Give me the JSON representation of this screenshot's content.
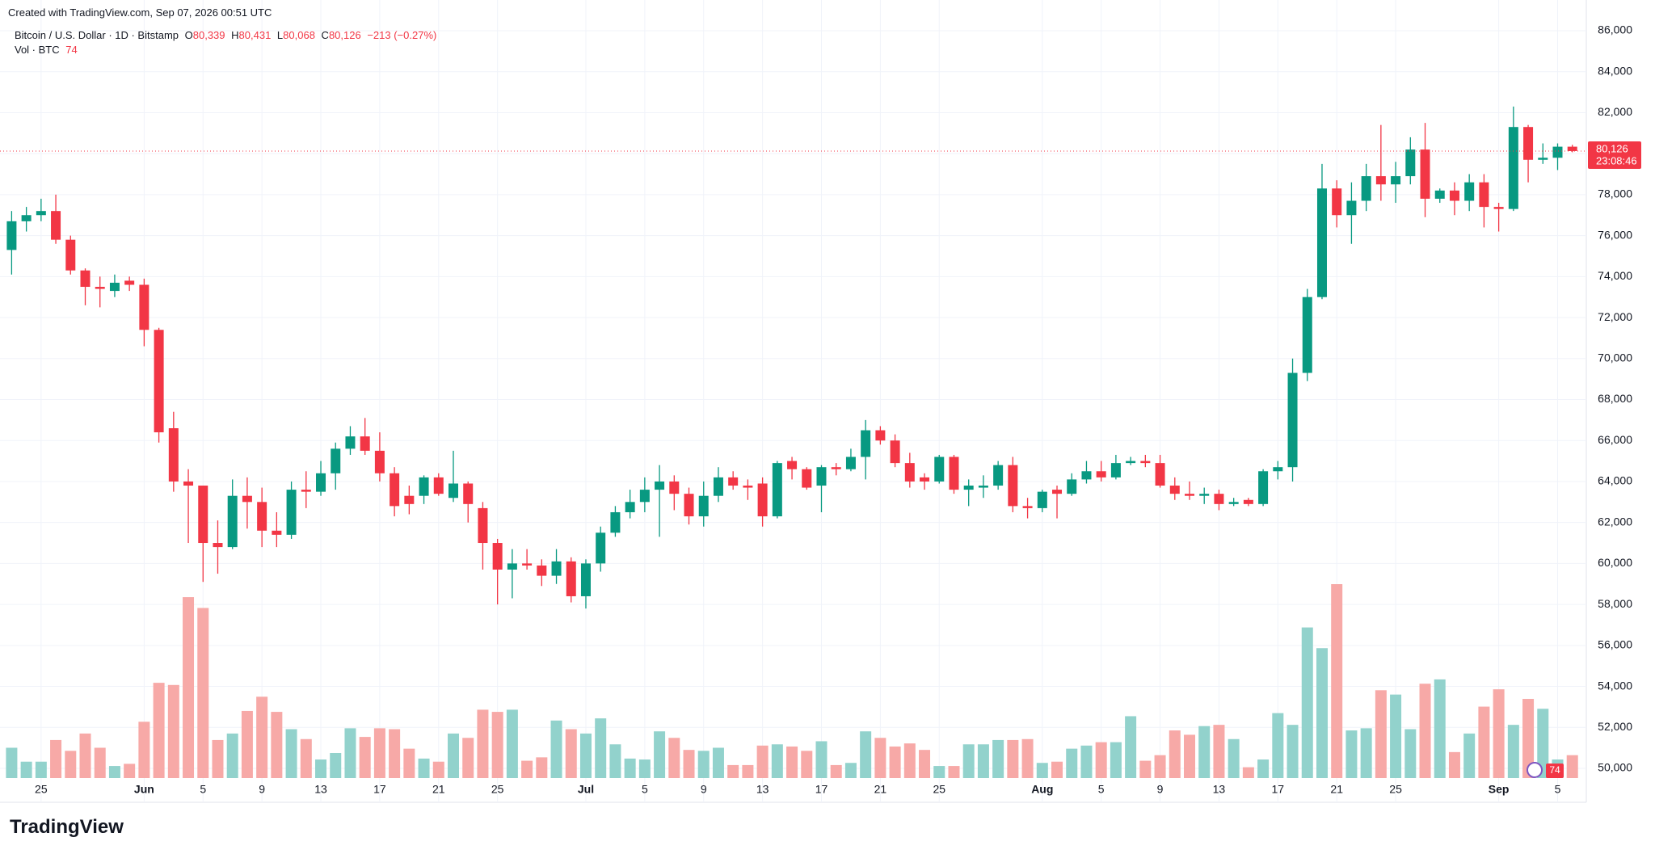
{
  "header": {
    "created": "Created with TradingView.com, Sep 07, 2026 00:51 UTC",
    "symbol": "Bitcoin / U.S. Dollar · 1D · Bitstamp",
    "o": "O",
    "h": "H",
    "l": "L",
    "c": "C",
    "values": [
      "80,339",
      "80,431",
      "80,068",
      "80,126"
    ],
    "change": "−213 (−0.27%)",
    "vol_title": "Vol · BTC",
    "vol_value": "74",
    "countdown": "23:08:46",
    "logo": "TradingView"
  },
  "chart_data": {
    "type": "candlestick",
    "up_color": "#089981",
    "down_color": "#f23645",
    "volume_up_color": "#92d2cc",
    "volume_down_color": "#f7a9a7",
    "grid": true,
    "ylim": [
      50000,
      86000
    ],
    "yticks": [
      {
        "value": 50000,
        "label": "50,000"
      },
      {
        "value": 52000,
        "label": "52,000"
      },
      {
        "value": 54000,
        "label": "54,000"
      },
      {
        "value": 56000,
        "label": "56,000"
      },
      {
        "value": 58000,
        "label": "58,000"
      },
      {
        "value": 60000,
        "label": "60,000"
      },
      {
        "value": 62000,
        "label": "62,000"
      },
      {
        "value": 64000,
        "label": "64,000"
      },
      {
        "value": 66000,
        "label": "66,000"
      },
      {
        "value": 68000,
        "label": "68,000"
      },
      {
        "value": 70000,
        "label": "70,000"
      },
      {
        "value": 72000,
        "label": "72,000"
      },
      {
        "value": 74000,
        "label": "74,000"
      },
      {
        "value": 76000,
        "label": "76,000"
      },
      {
        "value": 78000,
        "label": "78,000"
      },
      {
        "value": 80000,
        "label": "80,000"
      },
      {
        "value": 82000,
        "label": "82,000"
      },
      {
        "value": 84000,
        "label": "84,000"
      },
      {
        "value": 86000,
        "label": "86,000"
      }
    ],
    "categories": [
      null,
      null,
      "25",
      null,
      null,
      null,
      null,
      null,
      null,
      "Jun",
      null,
      null,
      null,
      "5",
      null,
      null,
      null,
      "9",
      null,
      null,
      null,
      "13",
      null,
      null,
      null,
      "17",
      null,
      null,
      null,
      "21",
      null,
      null,
      null,
      "25",
      null,
      null,
      null,
      null,
      null,
      "Jul",
      null,
      null,
      null,
      "5",
      null,
      null,
      null,
      "9",
      null,
      null,
      null,
      "13",
      null,
      null,
      null,
      "17",
      null,
      null,
      null,
      "21",
      null,
      null,
      null,
      "25",
      null,
      null,
      null,
      null,
      null,
      null,
      "Aug",
      null,
      null,
      null,
      "5",
      null,
      null,
      null,
      "9",
      null,
      null,
      null,
      "13",
      null,
      null,
      null,
      "17",
      null,
      null,
      null,
      "21",
      null,
      null,
      null,
      "25",
      null,
      null,
      null,
      null,
      null,
      null,
      "Sep",
      null,
      null,
      null,
      "5",
      null
    ],
    "ohlc": [
      [
        75300,
        77200,
        74100,
        76700
      ],
      [
        76700,
        77400,
        76200,
        77000
      ],
      [
        77000,
        77800,
        76700,
        77200
      ],
      [
        77200,
        78000,
        75600,
        75800
      ],
      [
        75800,
        76000,
        74100,
        74300
      ],
      [
        74300,
        74400,
        72600,
        73500
      ],
      [
        73500,
        74000,
        72500,
        73400
      ],
      [
        73300,
        74100,
        73000,
        73700
      ],
      [
        73800,
        74000,
        73300,
        73600
      ],
      [
        73600,
        73900,
        70600,
        71400
      ],
      [
        71400,
        71500,
        65900,
        66400
      ],
      [
        66600,
        67400,
        63500,
        64000
      ],
      [
        64000,
        64600,
        61000,
        63800
      ],
      [
        63800,
        63800,
        59100,
        61000
      ],
      [
        61000,
        62100,
        59500,
        60800
      ],
      [
        60800,
        64100,
        60700,
        63300
      ],
      [
        63300,
        64200,
        61700,
        63000
      ],
      [
        63000,
        63700,
        60800,
        61600
      ],
      [
        61600,
        62500,
        60800,
        61400
      ],
      [
        61400,
        64000,
        61200,
        63600
      ],
      [
        63600,
        64500,
        62700,
        63500
      ],
      [
        63500,
        65000,
        63300,
        64400
      ],
      [
        64400,
        65900,
        63600,
        65600
      ],
      [
        65600,
        66700,
        65300,
        66200
      ],
      [
        66200,
        67100,
        65300,
        65500
      ],
      [
        65500,
        66400,
        64000,
        64400
      ],
      [
        64400,
        64700,
        62300,
        62800
      ],
      [
        63300,
        63800,
        62400,
        62900
      ],
      [
        63300,
        64300,
        62900,
        64200
      ],
      [
        64200,
        64400,
        63300,
        63400
      ],
      [
        63200,
        65500,
        63000,
        63900
      ],
      [
        63900,
        64000,
        62000,
        62900
      ],
      [
        62700,
        63000,
        59700,
        61000
      ],
      [
        61000,
        61200,
        58000,
        59700
      ],
      [
        59700,
        60700,
        58300,
        60000
      ],
      [
        60000,
        60700,
        59700,
        59900
      ],
      [
        59900,
        60200,
        58900,
        59400
      ],
      [
        59400,
        60700,
        59000,
        60100
      ],
      [
        60100,
        60300,
        58100,
        58400
      ],
      [
        58400,
        60200,
        57800,
        60000
      ],
      [
        60000,
        61800,
        59600,
        61500
      ],
      [
        61500,
        62800,
        61300,
        62500
      ],
      [
        62500,
        63600,
        62200,
        63000
      ],
      [
        63000,
        64200,
        62500,
        63600
      ],
      [
        63600,
        64800,
        61300,
        64000
      ],
      [
        64000,
        64300,
        62600,
        63400
      ],
      [
        63400,
        63700,
        61900,
        62300
      ],
      [
        62300,
        64000,
        61800,
        63300
      ],
      [
        63300,
        64700,
        63000,
        64200
      ],
      [
        64200,
        64500,
        63600,
        63800
      ],
      [
        63800,
        64100,
        63100,
        63700
      ],
      [
        63900,
        64200,
        61800,
        62300
      ],
      [
        62300,
        65000,
        62200,
        64900
      ],
      [
        65000,
        65200,
        64100,
        64600
      ],
      [
        64600,
        64700,
        63600,
        63700
      ],
      [
        63800,
        64800,
        62500,
        64700
      ],
      [
        64700,
        64900,
        64300,
        64600
      ],
      [
        64600,
        65600,
        64500,
        65200
      ],
      [
        65200,
        67000,
        64100,
        66500
      ],
      [
        66500,
        66700,
        65800,
        66000
      ],
      [
        66000,
        66300,
        64700,
        64900
      ],
      [
        64900,
        65400,
        63700,
        64000
      ],
      [
        64200,
        64400,
        63600,
        64000
      ],
      [
        64000,
        65300,
        63900,
        65200
      ],
      [
        65200,
        65300,
        63400,
        63600
      ],
      [
        63600,
        64100,
        62800,
        63800
      ],
      [
        63700,
        64300,
        63200,
        63800
      ],
      [
        63800,
        65000,
        63600,
        64800
      ],
      [
        64800,
        65200,
        62500,
        62800
      ],
      [
        62800,
        63200,
        62200,
        62700
      ],
      [
        62700,
        63600,
        62500,
        63500
      ],
      [
        63600,
        63800,
        62200,
        63400
      ],
      [
        63400,
        64400,
        63300,
        64100
      ],
      [
        64100,
        65000,
        63900,
        64500
      ],
      [
        64500,
        65000,
        64000,
        64200
      ],
      [
        64200,
        65300,
        64100,
        64900
      ],
      [
        64900,
        65200,
        64800,
        65000
      ],
      [
        65000,
        65300,
        64700,
        64900
      ],
      [
        64900,
        65300,
        63700,
        63800
      ],
      [
        63800,
        64200,
        63100,
        63400
      ],
      [
        63400,
        64000,
        63100,
        63300
      ],
      [
        63300,
        63700,
        62900,
        63400
      ],
      [
        63400,
        63600,
        62600,
        62900
      ],
      [
        62900,
        63200,
        62800,
        63000
      ],
      [
        63100,
        63200,
        62800,
        62900
      ],
      [
        62900,
        64600,
        62800,
        64500
      ],
      [
        64500,
        65000,
        64100,
        64700
      ],
      [
        64700,
        70000,
        64000,
        69300
      ],
      [
        69300,
        73400,
        68900,
        73000
      ],
      [
        73000,
        79500,
        72900,
        78300
      ],
      [
        78300,
        78700,
        76400,
        77000
      ],
      [
        77000,
        78600,
        75600,
        77700
      ],
      [
        77700,
        79500,
        77200,
        78900
      ],
      [
        78900,
        81400,
        77700,
        78500
      ],
      [
        78500,
        79600,
        77600,
        78900
      ],
      [
        78900,
        80800,
        78500,
        80200
      ],
      [
        80200,
        81500,
        76900,
        77800
      ],
      [
        77800,
        78300,
        77600,
        78200
      ],
      [
        78200,
        78600,
        77000,
        77700
      ],
      [
        77700,
        79000,
        77200,
        78600
      ],
      [
        78600,
        79000,
        76400,
        77400
      ],
      [
        77400,
        77600,
        76200,
        77300
      ],
      [
        77300,
        82300,
        77200,
        81300
      ],
      [
        81300,
        81400,
        78600,
        79700
      ],
      [
        79700,
        80500,
        79500,
        79800
      ],
      [
        79800,
        80500,
        79200,
        80339
      ],
      [
        80339,
        80431,
        80068,
        80126
      ]
    ],
    "volume": [
      98,
      53,
      53,
      123,
      88,
      144,
      98,
      39,
      46,
      182,
      308,
      301,
      585,
      550,
      123,
      144,
      217,
      263,
      214,
      158,
      126,
      60,
      81,
      161,
      133,
      161,
      158,
      95,
      63,
      53,
      144,
      130,
      221,
      214,
      221,
      56,
      67,
      186,
      158,
      144,
      193,
      109,
      63,
      60,
      151,
      130,
      91,
      88,
      98,
      42,
      42,
      105,
      109,
      102,
      88,
      119,
      42,
      49,
      151,
      130,
      102,
      112,
      91,
      39,
      39,
      109,
      109,
      123,
      123,
      126,
      49,
      53,
      95,
      105,
      116,
      116,
      200,
      56,
      74,
      154,
      140,
      168,
      172,
      126,
      35,
      60,
      210,
      172,
      487,
      420,
      627,
      154,
      161,
      284,
      270,
      158,
      305,
      319,
      84,
      144,
      231,
      287,
      172,
      256,
      224,
      60,
      74
    ]
  }
}
